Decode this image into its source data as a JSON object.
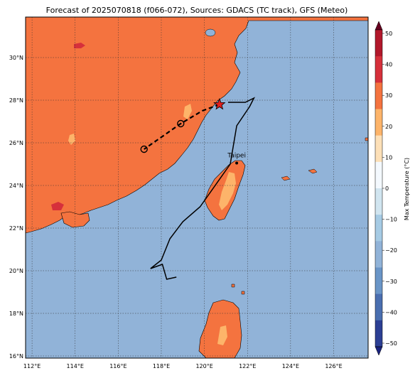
{
  "title": "Forecast of 2025070818 (f066-072), Sources: GDACS (TC track), GFS (Meteo)",
  "map": {
    "lon_range": [
      111.7,
      127.6
    ],
    "lat_range": [
      15.9,
      31.9
    ],
    "lon_ticks": [
      "112°E",
      "114°E",
      "116°E",
      "118°E",
      "120°E",
      "122°E",
      "124°E",
      "126°E"
    ],
    "lat_ticks": [
      "16°N",
      "18°N",
      "20°N",
      "22°N",
      "24°N",
      "26°N",
      "28°N",
      "30°N"
    ],
    "gridlines": true,
    "ocean_color": "#91b3d8",
    "land_color": "#f4733f",
    "warm_color": "#fdb46a",
    "hot_color": "#d6303b"
  },
  "city": {
    "label": "Taipei",
    "lon": 121.5,
    "lat": 25.05
  },
  "track": {
    "observed_line": [
      [
        121.1,
        27.9
      ],
      [
        121.9,
        27.9
      ],
      [
        122.3,
        28.1
      ],
      [
        122.1,
        27.7
      ],
      [
        121.5,
        26.8
      ],
      [
        121.2,
        25.0
      ],
      [
        119.8,
        23.0
      ],
      [
        119.0,
        22.3
      ],
      [
        118.4,
        21.5
      ],
      [
        118.0,
        20.5
      ],
      [
        117.5,
        20.1
      ],
      [
        118.05,
        20.3
      ],
      [
        118.25,
        19.6
      ],
      [
        118.7,
        19.7
      ]
    ],
    "forecast_dashed": [
      [
        120.7,
        27.8
      ],
      [
        119.9,
        27.5
      ],
      [
        118.9,
        26.9
      ],
      [
        117.2,
        25.7
      ]
    ],
    "forecast_points": [
      [
        118.9,
        26.9
      ],
      [
        117.2,
        25.7
      ]
    ],
    "current_position": [
      120.7,
      27.8
    ]
  },
  "colorbar": {
    "label": "Max Temperature (°C)",
    "ticks": [
      "50",
      "40",
      "30",
      "20",
      "10",
      "0",
      "−10",
      "−20",
      "−30",
      "−40",
      "−50"
    ],
    "colors": [
      "#67001f",
      "#b2182b",
      "#d6303b",
      "#f4733f",
      "#fdb46a",
      "#fde0b8",
      "#f4f9fe",
      "#d1e5f0",
      "#a6cbe4",
      "#91b3d8",
      "#6a95c7",
      "#4a6fb0",
      "#2c3f94",
      "#1a237e"
    ]
  }
}
